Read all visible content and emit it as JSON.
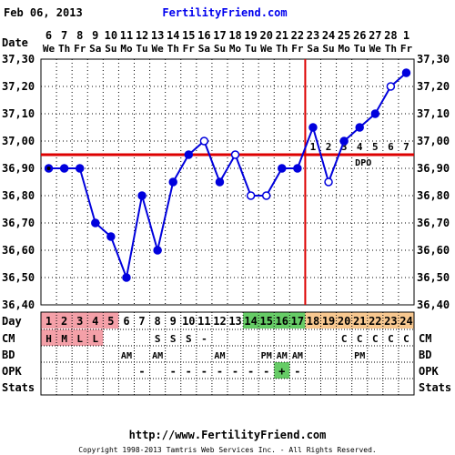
{
  "header": {
    "date": "Feb 06, 2013",
    "site": "FertilityFriend.com"
  },
  "footer": {
    "url": "http://www.FertilityFriend.com",
    "copyright": "Copyright 1998-2013 Tamtris Web Services Inc. - All Rights Reserved."
  },
  "row_labels": {
    "date": "Date",
    "day": "Day",
    "cm": "CM",
    "bd": "BD",
    "opk": "OPK",
    "stats": "Stats"
  },
  "colors": {
    "line": "#0000dd",
    "coverline": "#dd0000",
    "grid": "#000000",
    "menses": "#f4a0a8",
    "fertile": "#66cc66",
    "luteal": "#f8c890",
    "opk_positive": "#66cc66"
  },
  "chart_data": {
    "type": "line",
    "title": "",
    "xlabel": "",
    "ylabel": "",
    "ylim": [
      36.4,
      37.3
    ],
    "yticks": [
      "37,30",
      "37,20",
      "37,10",
      "37,00",
      "36,90",
      "36,80",
      "36,70",
      "36,60",
      "36,50",
      "36,40"
    ],
    "grid": true,
    "date_numbers": [
      "6",
      "7",
      "8",
      "9",
      "10",
      "11",
      "12",
      "13",
      "14",
      "15",
      "16",
      "17",
      "18",
      "19",
      "20",
      "21",
      "22",
      "23",
      "24",
      "25",
      "26",
      "27",
      "28",
      "1"
    ],
    "weekdays": [
      "We",
      "Th",
      "Fr",
      "Sa",
      "Su",
      "Mo",
      "Tu",
      "We",
      "Th",
      "Fr",
      "Sa",
      "Su",
      "Mo",
      "Tu",
      "We",
      "Th",
      "Fr",
      "Sa",
      "Su",
      "Mo",
      "Tu",
      "We",
      "Th",
      "Fr"
    ],
    "cycle_days": [
      "1",
      "2",
      "3",
      "4",
      "5",
      "6",
      "7",
      "8",
      "9",
      "10",
      "11",
      "12",
      "13",
      "14",
      "15",
      "16",
      "17",
      "18",
      "19",
      "20",
      "21",
      "22",
      "23",
      "24"
    ],
    "day_shading": [
      "menses",
      "menses",
      "menses",
      "menses",
      "menses",
      "none",
      "none",
      "none",
      "none",
      "none",
      "none",
      "none",
      "none",
      "fertile",
      "fertile",
      "fertile",
      "fertile",
      "luteal",
      "luteal",
      "luteal",
      "luteal",
      "luteal",
      "luteal",
      "luteal"
    ],
    "temperatures": [
      36.9,
      36.9,
      36.9,
      36.7,
      36.65,
      36.5,
      36.8,
      36.6,
      36.85,
      36.95,
      37.0,
      36.85,
      36.95,
      36.8,
      36.8,
      36.9,
      36.9,
      37.05,
      36.85,
      37.0,
      37.05,
      37.1,
      37.2,
      37.25
    ],
    "open_points": [
      false,
      false,
      false,
      false,
      false,
      false,
      false,
      false,
      false,
      false,
      true,
      false,
      true,
      true,
      true,
      false,
      false,
      false,
      true,
      false,
      false,
      false,
      true,
      false
    ],
    "coverline": 36.95,
    "ovulation_day": 17,
    "dpo_numbers": [
      "1",
      "2",
      "3",
      "4",
      "5",
      "6",
      "7"
    ],
    "dpo_label": "DPO",
    "cm": [
      "H",
      "M",
      "L",
      "L",
      "",
      "",
      "",
      "S",
      "S",
      "S",
      "-",
      "",
      "",
      "",
      "",
      "",
      "",
      "",
      "",
      "C",
      "C",
      "C",
      "C",
      "C"
    ],
    "bd": [
      "",
      "",
      "",
      "",
      "",
      "AM",
      "",
      "AM",
      "",
      "",
      "",
      "AM",
      "",
      "",
      "PM",
      "AM",
      "AM",
      "",
      "",
      "",
      "PM",
      "",
      "",
      ""
    ],
    "opk": [
      "",
      "",
      "",
      "",
      "",
      "",
      "-",
      "",
      "-",
      "-",
      "-",
      "-",
      "-",
      "-",
      "-",
      "+",
      "-",
      "",
      "",
      "",
      "",
      "",
      "",
      ""
    ],
    "opk_positive_day": 16,
    "stats": []
  }
}
